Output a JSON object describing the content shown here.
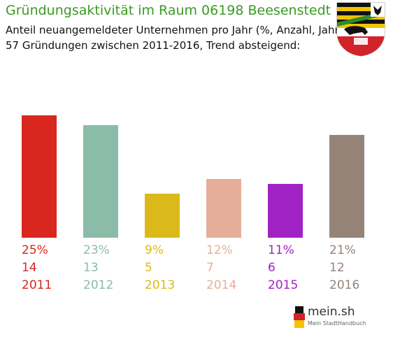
{
  "title": "Gründungsaktivität im Raum 06198 Beesenstedt",
  "subtitle_line1": "Anteil neuangemeldeter Unternehmen pro Jahr (%, Anzahl, Jahr)",
  "subtitle_line2": "57 Gründungen zwischen 2011-2016, Trend absteigend:",
  "logo": {
    "name": "mein.sh",
    "tagline": "Mein StadtHandbuch"
  },
  "crest_icon": "saxony-anhalt-coat-of-arms-icon",
  "chart_data": {
    "type": "bar",
    "categories": [
      "2011",
      "2012",
      "2013",
      "2014",
      "2015",
      "2016"
    ],
    "values": [
      25,
      23,
      9,
      12,
      11,
      21
    ],
    "percent_labels": [
      "25%",
      "23%",
      "9%",
      "12%",
      "11%",
      "21%"
    ],
    "counts": [
      14,
      13,
      5,
      7,
      6,
      12
    ],
    "colors": [
      "#d9261f",
      "#8bbca9",
      "#dbb91a",
      "#e6ae99",
      "#a122c4",
      "#968377"
    ],
    "ylim": [
      0,
      25
    ],
    "grid": false,
    "legend": "none"
  }
}
